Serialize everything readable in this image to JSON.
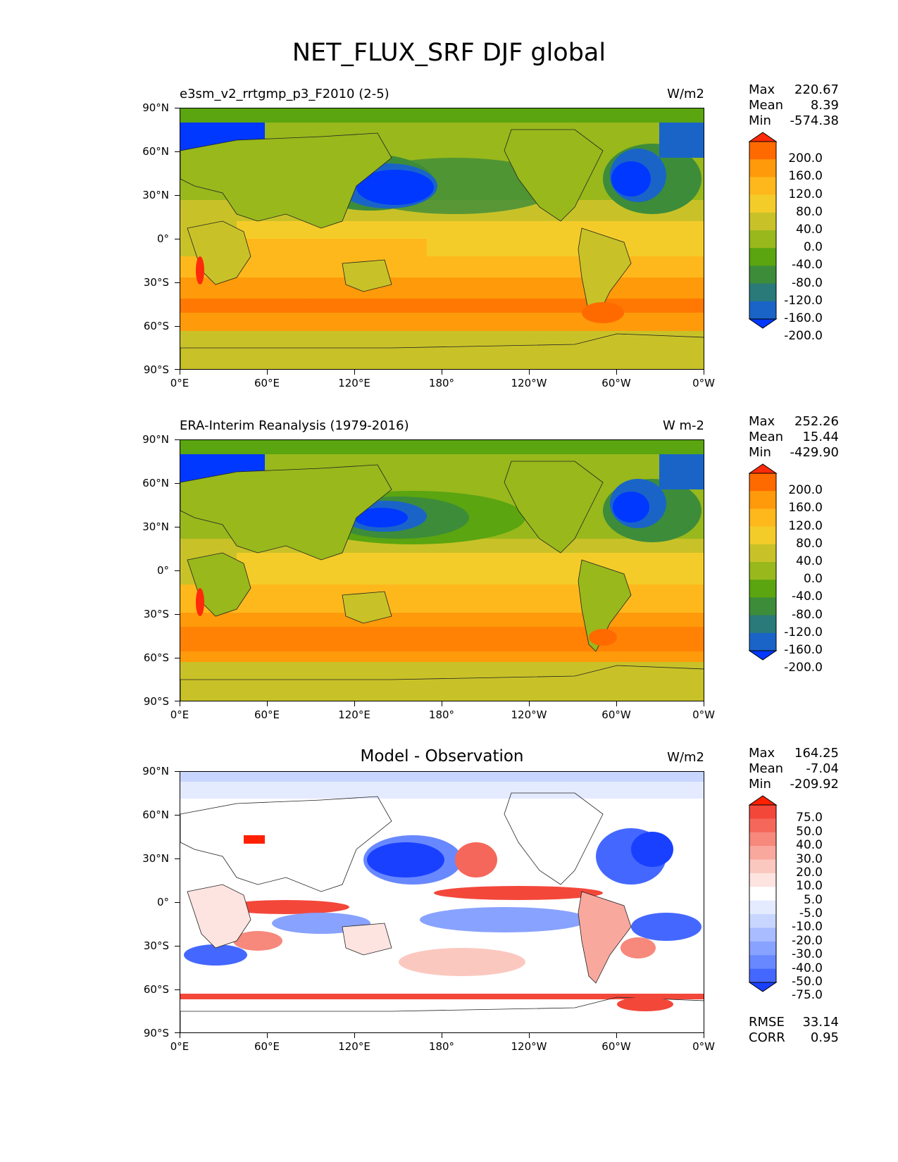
{
  "title": "NET_FLUX_SRF DJF global",
  "lat_labels": [
    "90°N",
    "60°N",
    "30°N",
    "0°",
    "30°S",
    "60°S",
    "90°S"
  ],
  "lon_labels": [
    "0°E",
    "60°E",
    "120°E",
    "180°",
    "120°W",
    "60°W",
    "0°W"
  ],
  "panels": [
    {
      "title": "e3sm_v2_rrtgmp_p3_F2010 (2-5)",
      "units": "W/m2",
      "stats": {
        "max_label": "Max",
        "max": "220.67",
        "mean_label": "Mean",
        "mean": "8.39",
        "min_label": "Min",
        "min": "-574.38"
      },
      "colorbar": {
        "levels": [
          "200.0",
          "160.0",
          "120.0",
          "80.0",
          "40.0",
          "0.0",
          "-40.0",
          "-80.0",
          "-120.0",
          "-160.0",
          "-200.0"
        ],
        "colors": [
          "#ff2a0a",
          "#ff6a00",
          "#ff9a0a",
          "#ffb81c",
          "#f4cc2a",
          "#c8c228",
          "#98b81c",
          "#5aa510",
          "#3d8c3a",
          "#2a7a7a",
          "#1a64c8",
          "#0038ff"
        ]
      }
    },
    {
      "title": "ERA-Interim Reanalysis (1979-2016)",
      "units": "W m-2",
      "stats": {
        "max_label": "Max",
        "max": "252.26",
        "mean_label": "Mean",
        "mean": "15.44",
        "min_label": "Min",
        "min": "-429.90"
      },
      "colorbar": {
        "levels": [
          "200.0",
          "160.0",
          "120.0",
          "80.0",
          "40.0",
          "0.0",
          "-40.0",
          "-80.0",
          "-120.0",
          "-160.0",
          "-200.0"
        ],
        "colors": [
          "#ff2a0a",
          "#ff6a00",
          "#ff9a0a",
          "#ffb81c",
          "#f4cc2a",
          "#c8c228",
          "#98b81c",
          "#5aa510",
          "#3d8c3a",
          "#2a7a7a",
          "#1a64c8",
          "#0038ff"
        ]
      }
    },
    {
      "title": "Model - Observation",
      "units": "W/m2",
      "stats": {
        "max_label": "Max",
        "max": "164.25",
        "mean_label": "Mean",
        "mean": "-7.04",
        "min_label": "Min",
        "min": "-209.92"
      },
      "colorbar": {
        "levels": [
          "75.0",
          "50.0",
          "40.0",
          "30.0",
          "20.0",
          "10.0",
          "5.0",
          "-5.0",
          "-10.0",
          "-20.0",
          "-30.0",
          "-40.0",
          "-50.0",
          "-75.0"
        ],
        "colors": [
          "#ff2000",
          "#f3473a",
          "#f5675a",
          "#f7887c",
          "#f9a89e",
          "#fbc8c0",
          "#fde4e0",
          "#ffffff",
          "#e4ebff",
          "#c8d6ff",
          "#a8bcff",
          "#88a2ff",
          "#6888ff",
          "#4468ff",
          "#1a40ff"
        ]
      },
      "metrics": {
        "rmse_label": "RMSE",
        "rmse": "33.14",
        "corr_label": "CORR",
        "corr": "0.95"
      }
    }
  ]
}
